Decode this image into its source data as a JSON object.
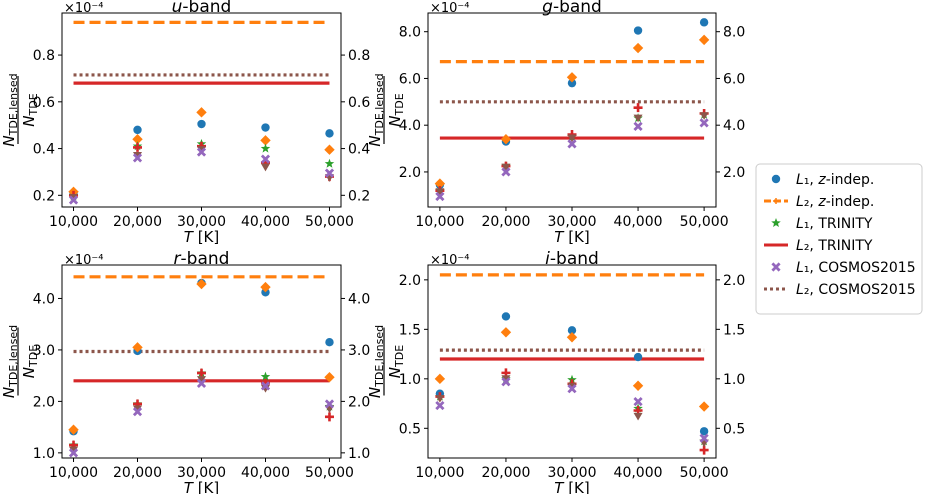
{
  "legend": [
    {
      "key": "L1_zindep",
      "label": "L₁, z-indep.",
      "color": "#1f77b4",
      "marker": "circle"
    },
    {
      "key": "L2_zindep",
      "label": "L₂, z-indep.",
      "color": "#ff7f0e",
      "marker": "dashed-line"
    },
    {
      "key": "L1_trinity",
      "label": "L₁, TRINITY",
      "color": "#2ca02c",
      "marker": "star"
    },
    {
      "key": "L2_trinity",
      "label": "L₂, TRINITY",
      "color": "#d62728",
      "marker": "solid-line"
    },
    {
      "key": "L1_cosmos",
      "label": "L₁, COSMOS2015",
      "color": "#9467bd",
      "marker": "x"
    },
    {
      "key": "L2_cosmos",
      "label": "L₂, COSMOS2015",
      "color": "#8c564b",
      "marker": "dotted-line"
    }
  ],
  "extra_markers": {
    "plus_color": "#d62728",
    "tri_color": "#8c564b",
    "diamond_color": "#ff7f0e"
  },
  "chart_data": [
    {
      "type": "scatter",
      "title": "u-band",
      "xlabel": "T [K]",
      "ylabel": "N_TDE,lensed / N_TDE",
      "scale_label": "×10⁻⁴",
      "x": [
        10000,
        20000,
        30000,
        40000,
        50000
      ],
      "x_tick_labels": [
        "10,000",
        "20,000",
        "30,000",
        "40,000",
        "50,000"
      ],
      "xlim": [
        8200,
        51800
      ],
      "ylim": [
        0.15,
        0.98
      ],
      "y_ticks": [
        0.2,
        0.4,
        0.6,
        0.8
      ],
      "y_tick_labels": [
        "0.2",
        "0.4",
        "0.6",
        "0.8"
      ],
      "hlines": {
        "L2_zindep": 0.94,
        "L2_cosmos": 0.715,
        "L2_trinity": 0.68
      },
      "series": {
        "circle": [
          0.21,
          0.48,
          0.505,
          0.49,
          0.465
        ],
        "diamond": [
          0.215,
          0.44,
          0.555,
          0.435,
          0.395
        ],
        "star": [
          0.195,
          0.41,
          0.42,
          0.4,
          0.335
        ],
        "plus": [
          0.2,
          0.405,
          0.41,
          0.34,
          0.28
        ],
        "tri": [
          0.19,
          0.37,
          0.395,
          0.32,
          0.275
        ],
        "x": [
          0.18,
          0.36,
          0.385,
          0.355,
          0.295
        ]
      }
    },
    {
      "type": "scatter",
      "title": "g-band",
      "xlabel": "T [K]",
      "ylabel": "N_TDE,lensed / N_TDE",
      "scale_label": "×10⁻⁴",
      "x": [
        10000,
        20000,
        30000,
        40000,
        50000
      ],
      "x_tick_labels": [
        "10,000",
        "20,000",
        "30,000",
        "40,000",
        "50,000"
      ],
      "xlim": [
        8200,
        51800
      ],
      "ylim": [
        0.5,
        8.8
      ],
      "y_ticks": [
        2.0,
        4.0,
        6.0,
        8.0
      ],
      "y_tick_labels": [
        "2.0",
        "4.0",
        "6.0",
        "8.0"
      ],
      "hlines": {
        "L2_zindep": 6.72,
        "L2_cosmos": 5.0,
        "L2_trinity": 3.45
      },
      "series": {
        "circle": [
          1.45,
          3.3,
          5.8,
          8.05,
          8.4
        ],
        "diamond": [
          1.5,
          3.4,
          6.05,
          7.3,
          7.65
        ],
        "star": [
          1.2,
          2.25,
          3.5,
          4.3,
          4.45
        ],
        "plus": [
          1.2,
          2.25,
          3.6,
          4.75,
          4.5
        ],
        "tri": [
          1.15,
          2.2,
          3.45,
          4.3,
          4.4
        ],
        "x": [
          0.95,
          2.0,
          3.2,
          3.95,
          4.1
        ]
      }
    },
    {
      "type": "scatter",
      "title": "r-band",
      "xlabel": "T [K]",
      "ylabel": "N_TDE,lensed / N_TDE",
      "scale_label": "×10⁻⁴",
      "x": [
        10000,
        20000,
        30000,
        40000,
        50000
      ],
      "x_tick_labels": [
        "10,000",
        "20,000",
        "30,000",
        "40,000",
        "50,000"
      ],
      "xlim": [
        8200,
        51800
      ],
      "ylim": [
        0.9,
        4.65
      ],
      "y_ticks": [
        1.0,
        2.0,
        3.0,
        4.0
      ],
      "y_tick_labels": [
        "1.0",
        "2.0",
        "3.0",
        "4.0"
      ],
      "hlines": {
        "L2_zindep": 4.42,
        "L2_cosmos": 2.97,
        "L2_trinity": 2.4
      },
      "series": {
        "circle": [
          1.42,
          2.98,
          4.3,
          4.12,
          3.15
        ],
        "diamond": [
          1.45,
          3.05,
          4.28,
          4.22,
          2.47
        ],
        "star": [
          1.15,
          1.95,
          2.55,
          2.48,
          1.9
        ],
        "plus": [
          1.15,
          1.95,
          2.55,
          2.35,
          1.7
        ],
        "tri": [
          1.05,
          1.85,
          2.42,
          2.25,
          1.85
        ],
        "x": [
          1.0,
          1.8,
          2.35,
          2.3,
          1.95
        ]
      }
    },
    {
      "type": "scatter",
      "title": "i-band",
      "xlabel": "T [K]",
      "ylabel": "N_TDE,lensed / N_TDE",
      "scale_label": "×10⁻⁴",
      "x": [
        10000,
        20000,
        30000,
        40000,
        50000
      ],
      "x_tick_labels": [
        "10,000",
        "20,000",
        "30,000",
        "40,000",
        "50,000"
      ],
      "xlim": [
        8200,
        51800
      ],
      "ylim": [
        0.2,
        2.15
      ],
      "y_ticks": [
        0.5,
        1.0,
        1.5,
        2.0
      ],
      "y_tick_labels": [
        "0.5",
        "1.0",
        "1.5",
        "2.0"
      ],
      "hlines": {
        "L2_zindep": 2.05,
        "L2_cosmos": 1.29,
        "L2_trinity": 1.2
      },
      "series": {
        "circle": [
          0.85,
          1.63,
          1.49,
          1.22,
          0.47
        ],
        "diamond": [
          1.0,
          1.47,
          1.42,
          0.93,
          0.72
        ],
        "star": [
          0.82,
          1.0,
          0.99,
          0.7,
          0.37
        ],
        "plus": [
          0.82,
          1.06,
          0.95,
          0.68,
          0.28
        ],
        "tri": [
          0.8,
          1.0,
          0.92,
          0.62,
          0.35
        ],
        "x": [
          0.73,
          0.97,
          0.9,
          0.77,
          0.4
        ]
      }
    }
  ]
}
